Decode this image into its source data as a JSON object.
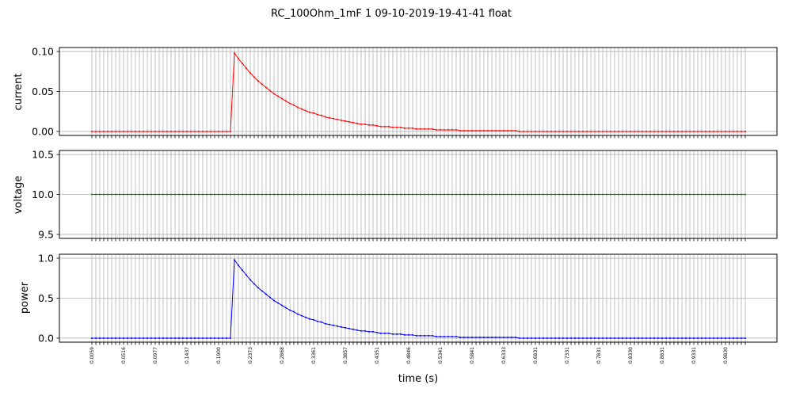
{
  "chart_data": {
    "title": "RC_100Ohm_1mF   1   09-10-2019-19-41-41   float",
    "xlabel": "time (s)",
    "type": "line",
    "grid": true,
    "x_tick_labels": [
      "0.0059",
      "0.0516",
      "0.0977",
      "0.1437",
      "0.1900",
      "0.2373",
      "0.2868",
      "0.3361",
      "0.3857",
      "0.4351",
      "0.4846",
      "0.5341",
      "0.5841",
      "0.6333",
      "0.6831",
      "0.7331",
      "0.7831",
      "0.8330",
      "0.8831",
      "0.9331",
      "0.9830"
    ],
    "step_time": 0.2198,
    "tau": 0.0815,
    "sample_count": 166,
    "x_start": 0.0059,
    "x_end": 0.993,
    "panels": [
      {
        "name": "current",
        "ylabel": "current",
        "color": "#ff0000",
        "ylim": [
          -0.005,
          0.105
        ],
        "yticks": [
          "0.00",
          "0.05",
          "0.10"
        ],
        "ytick_values": [
          0.0,
          0.05,
          0.1
        ],
        "peak": 0.1,
        "baseline": 0.0
      },
      {
        "name": "voltage",
        "ylabel": "voltage",
        "color": "#008000",
        "ylim": [
          9.45,
          10.55
        ],
        "yticks": [
          "9.5",
          "10.0",
          "10.5"
        ],
        "ytick_values": [
          9.5,
          10.0,
          10.5
        ],
        "constant": 10.0
      },
      {
        "name": "power",
        "ylabel": "power",
        "color": "#0000ff",
        "ylim": [
          -0.05,
          1.05
        ],
        "yticks": [
          "0.0",
          "0.5",
          "1.0"
        ],
        "ytick_values": [
          0.0,
          0.5,
          1.0
        ],
        "peak": 1.0,
        "baseline": 0.0
      }
    ]
  }
}
